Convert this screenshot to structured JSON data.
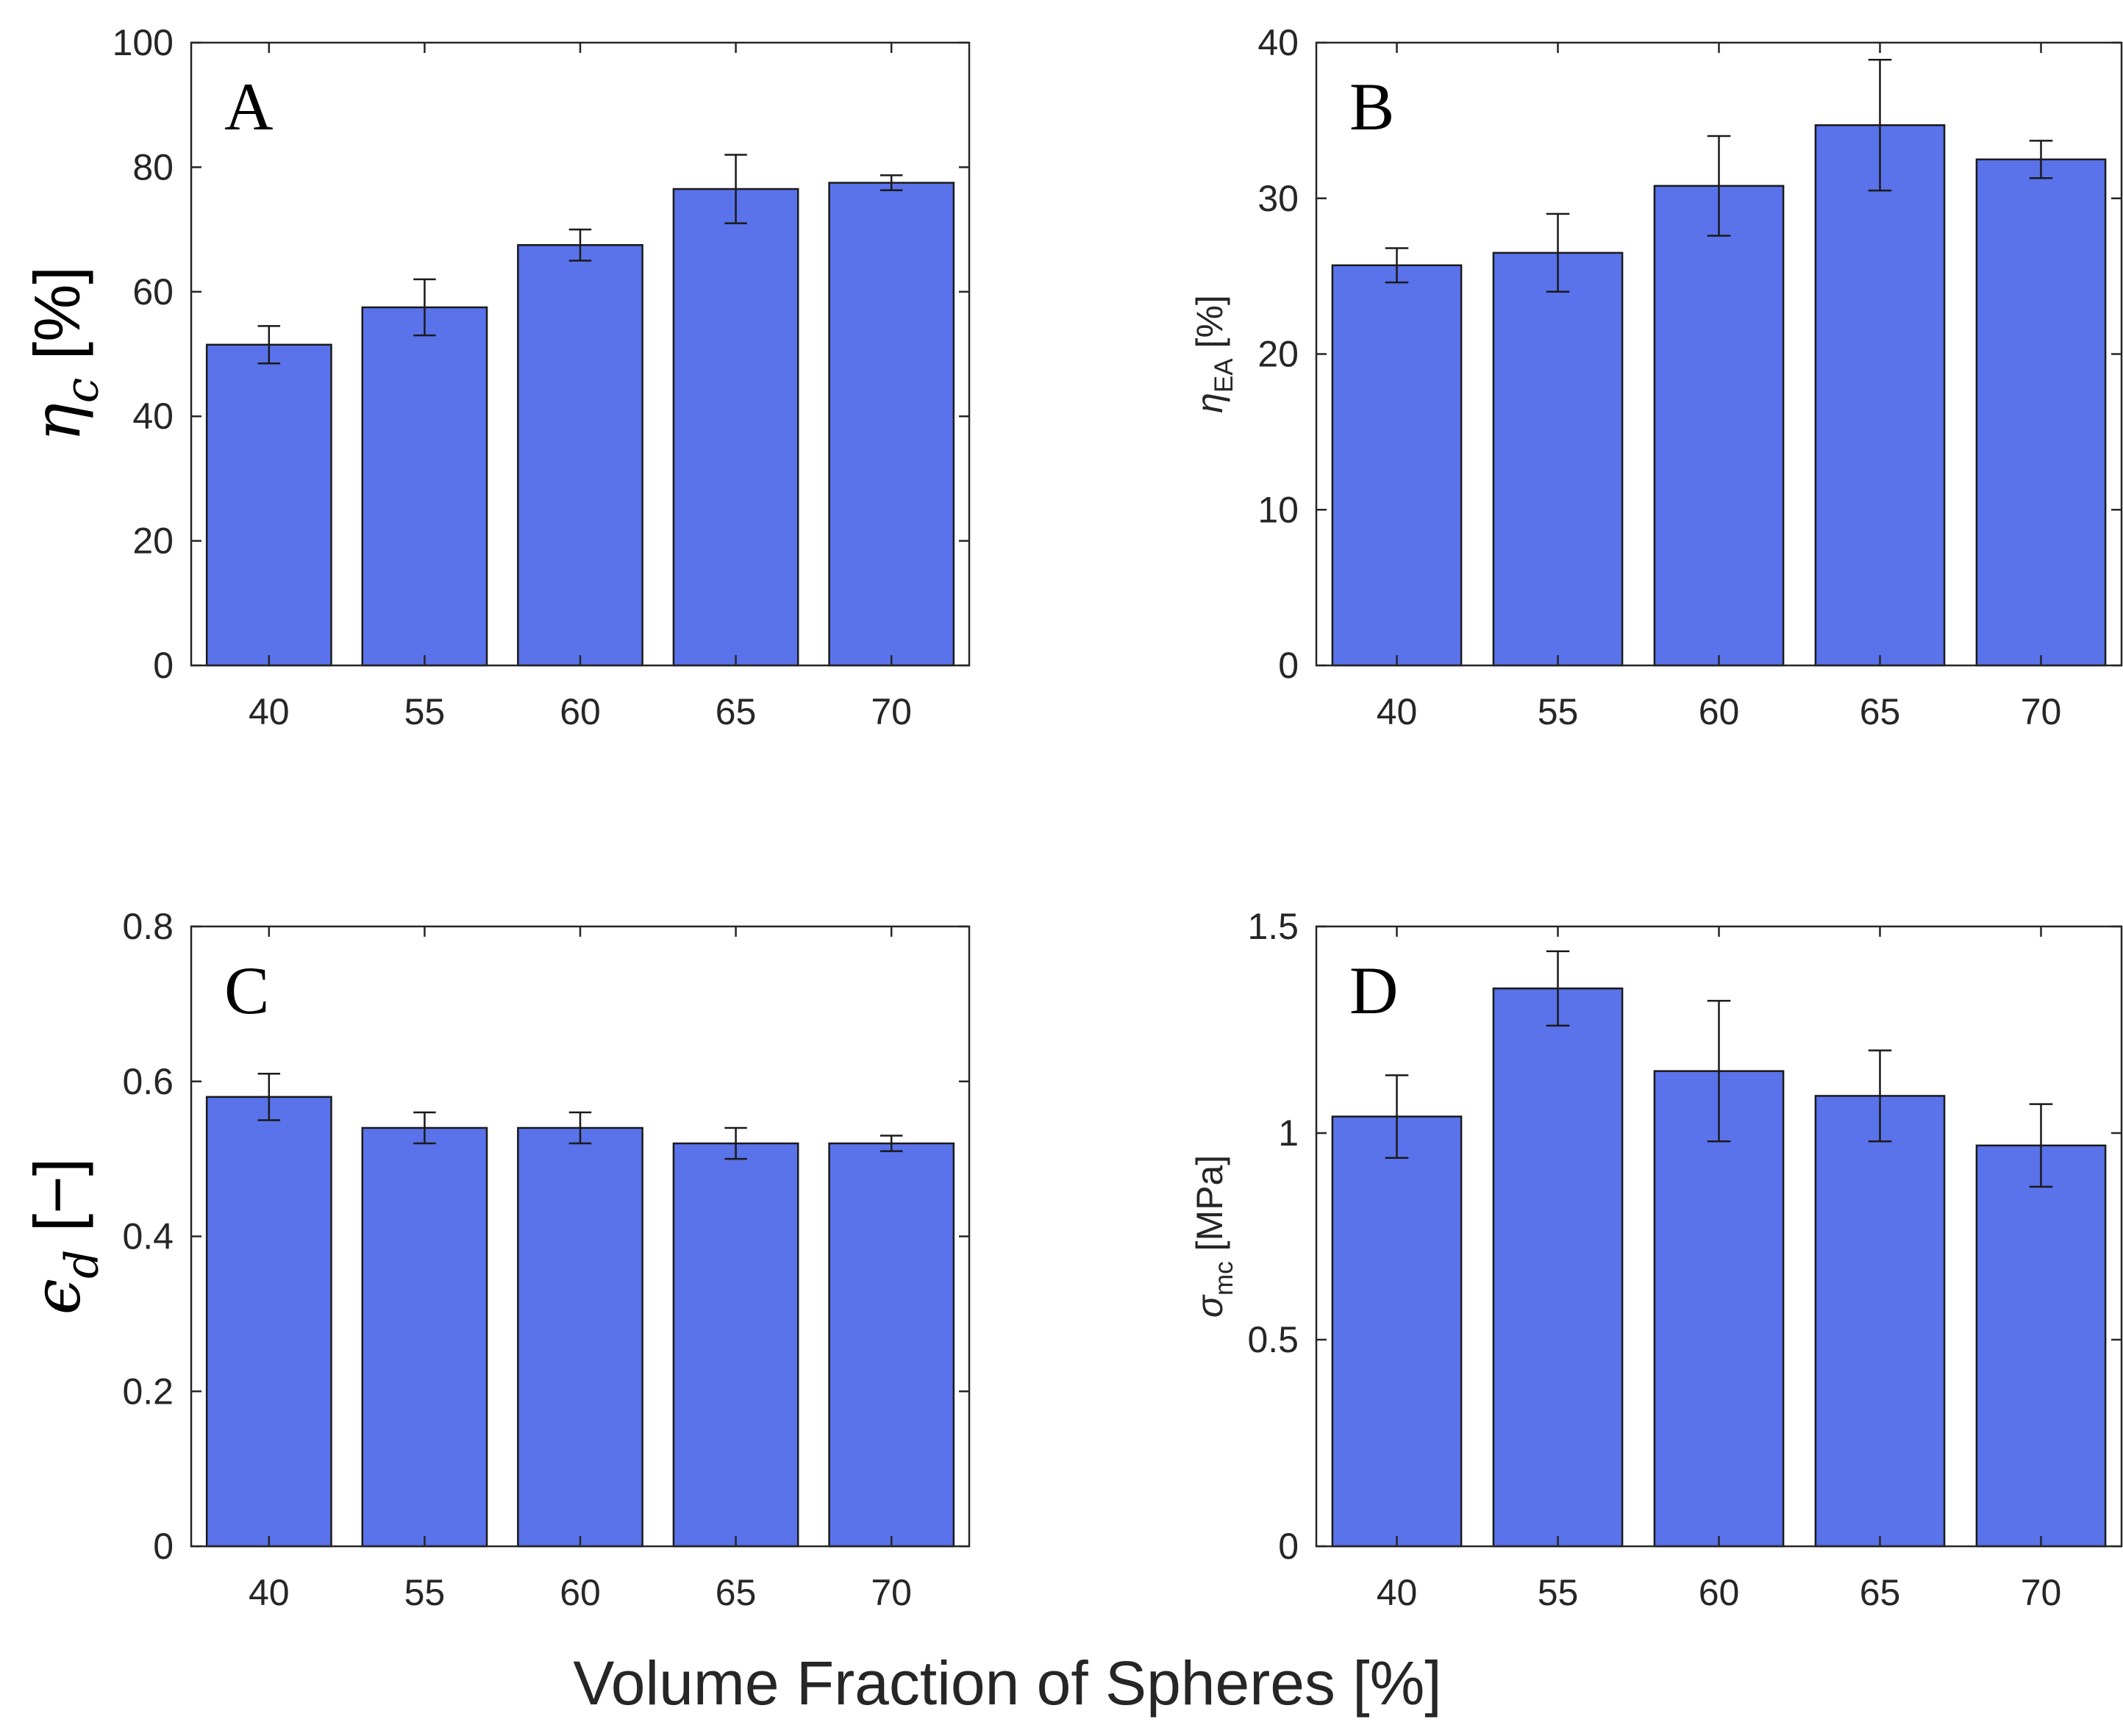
{
  "figure": {
    "xlabel": "Volume Fraction of Spheres [%]",
    "bar_color": "#5a72ea"
  },
  "chart_data": [
    {
      "type": "bar",
      "panel_letter": "A",
      "ylabel": {
        "symbol": "η",
        "sub": "c",
        "unit": " [%]"
      },
      "categories": [
        "40",
        "55",
        "60",
        "65",
        "70"
      ],
      "values": [
        51.5,
        57.5,
        67.5,
        76.5,
        77.5
      ],
      "errors": [
        3.0,
        4.5,
        2.5,
        5.5,
        1.2
      ],
      "ylim": [
        0,
        100
      ],
      "yticks": [
        0,
        20,
        40,
        60,
        80,
        100
      ],
      "ytick_labels": [
        "0",
        "20",
        "40",
        "60",
        "80",
        "100"
      ]
    },
    {
      "type": "bar",
      "panel_letter": "B",
      "ylabel": {
        "symbol": "η",
        "sub": "EA",
        "unit": " [%]"
      },
      "categories": [
        "40",
        "55",
        "60",
        "65",
        "70"
      ],
      "values": [
        25.7,
        26.5,
        30.8,
        34.7,
        32.5
      ],
      "errors": [
        1.1,
        2.5,
        3.2,
        4.2,
        1.2
      ],
      "ylim": [
        0,
        40
      ],
      "yticks": [
        0,
        10,
        20,
        30,
        40
      ],
      "ytick_labels": [
        "0",
        "10",
        "20",
        "30",
        "40"
      ]
    },
    {
      "type": "bar",
      "panel_letter": "C",
      "ylabel": {
        "symbol": "ϵ",
        "sub": "d",
        "unit": " [−]"
      },
      "categories": [
        "40",
        "55",
        "60",
        "65",
        "70"
      ],
      "values": [
        0.58,
        0.54,
        0.54,
        0.52,
        0.52
      ],
      "errors": [
        0.03,
        0.02,
        0.02,
        0.02,
        0.01
      ],
      "ylim": [
        0,
        0.8
      ],
      "yticks": [
        0,
        0.2,
        0.4,
        0.6,
        0.8
      ],
      "ytick_labels": [
        "0",
        "0.2",
        "0.4",
        "0.6",
        "0.8"
      ]
    },
    {
      "type": "bar",
      "panel_letter": "D",
      "ylabel": {
        "symbol": "σ",
        "sub": "mc",
        "unit": " [MPa]"
      },
      "categories": [
        "40",
        "55",
        "60",
        "65",
        "70"
      ],
      "values": [
        1.04,
        1.35,
        1.15,
        1.09,
        0.97
      ],
      "errors": [
        0.1,
        0.09,
        0.17,
        0.11,
        0.1
      ],
      "ylim": [
        0,
        1.5
      ],
      "yticks": [
        0,
        0.5,
        1,
        1.5
      ],
      "ytick_labels": [
        "0",
        "0.5",
        "1",
        "1.5"
      ]
    }
  ]
}
